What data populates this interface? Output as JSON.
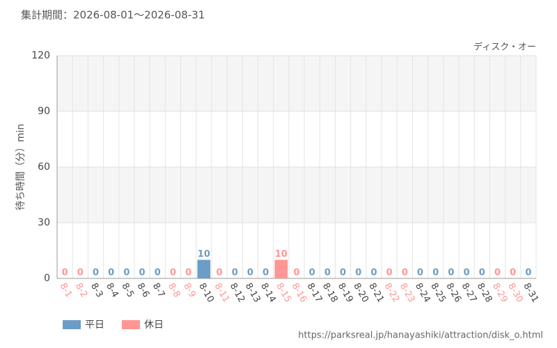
{
  "chart_data": {
    "type": "bar",
    "title": "集計期間：2026-08-01～2026-08-31",
    "subtitle": "ディスク・オー",
    "y_label": "待ち時間（分）min",
    "source": "https://parksreal.jp/hanayashiki/attraction/disk_o.html",
    "categories": [
      "8-1",
      "8-2",
      "8-3",
      "8-4",
      "8-5",
      "8-6",
      "8-7",
      "8-8",
      "8-9",
      "8-10",
      "8-11",
      "8-12",
      "8-13",
      "8-14",
      "8-15",
      "8-16",
      "8-17",
      "8-18",
      "8-19",
      "8-20",
      "8-21",
      "8-22",
      "8-23",
      "8-24",
      "8-25",
      "8-26",
      "8-27",
      "8-28",
      "8-29",
      "8-30",
      "8-31"
    ],
    "series": [
      {
        "name": "平日",
        "color": "#6b9dc6",
        "values": [
          null,
          null,
          0,
          0,
          0,
          0,
          0,
          null,
          null,
          10,
          null,
          0,
          0,
          0,
          null,
          null,
          0,
          0,
          0,
          0,
          0,
          null,
          null,
          0,
          0,
          0,
          0,
          0,
          null,
          null,
          0
        ]
      },
      {
        "name": "休日",
        "color": "#ff9694",
        "values": [
          0,
          0,
          null,
          null,
          null,
          null,
          null,
          0,
          0,
          null,
          0,
          null,
          null,
          null,
          10,
          0,
          null,
          null,
          null,
          null,
          null,
          0,
          0,
          null,
          null,
          null,
          null,
          null,
          0,
          0,
          null
        ]
      }
    ],
    "ylim": [
      0,
      120
    ],
    "yticks": [
      0,
      30,
      60,
      90,
      120
    ],
    "grid": true
  }
}
